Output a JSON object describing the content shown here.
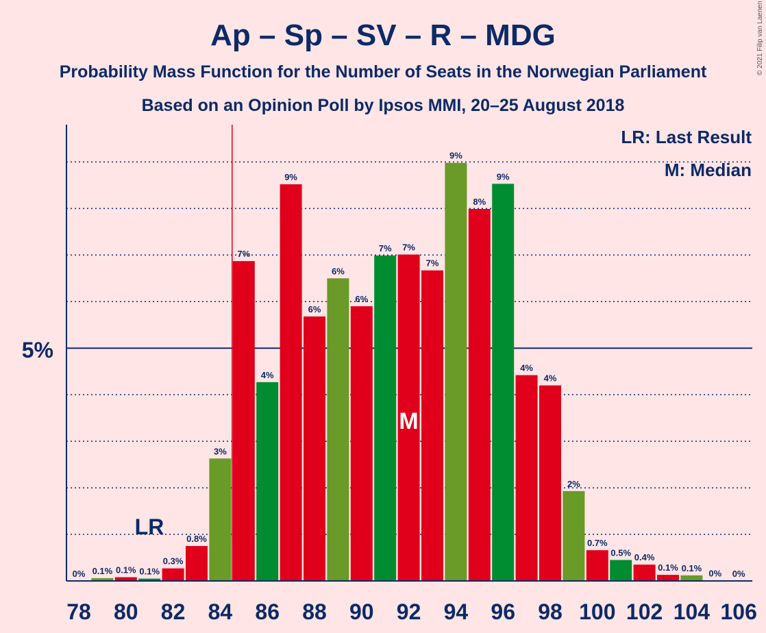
{
  "title": "Ap – Sp – SV – R – MDG",
  "subtitle1": "Probability Mass Function for the Number of Seats in the Norwegian Parliament",
  "subtitle2": "Based on an Opinion Poll by Ipsos MMI, 20–25 August 2018",
  "credit": "© 2021 Filip van Laenen",
  "legend": {
    "lr": "LR: Last Result",
    "m": "M: Median"
  },
  "markers": {
    "lr_label": "LR",
    "median_label": "M",
    "last_result_seat": 85,
    "median_seat": 92
  },
  "colors": {
    "red": "#e0001b",
    "green": "#008c30",
    "olive": "#6a9a28",
    "navy": "#0c2a67",
    "background": "#ffe5e5"
  },
  "chart_data": {
    "type": "bar",
    "ylabel_tick": "5%",
    "ylim": [
      0,
      9.8
    ],
    "x_ticks": [
      "78",
      "80",
      "82",
      "84",
      "86",
      "88",
      "90",
      "92",
      "94",
      "96",
      "98",
      "100",
      "102",
      "104",
      "106"
    ],
    "seats": [
      78,
      79,
      80,
      81,
      82,
      83,
      84,
      85,
      86,
      87,
      88,
      89,
      90,
      91,
      92,
      93,
      94,
      95,
      96,
      97,
      98,
      99,
      100,
      101,
      102,
      103,
      104,
      105,
      106
    ],
    "values": [
      0,
      0.06,
      0.08,
      0.05,
      0.27,
      0.75,
      2.63,
      6.87,
      4.27,
      8.52,
      5.68,
      6.5,
      5.9,
      6.99,
      7.01,
      6.67,
      8.98,
      7.99,
      8.53,
      4.42,
      4.2,
      1.93,
      0.66,
      0.45,
      0.35,
      0.13,
      0.12,
      0.01,
      0
    ],
    "labels": [
      "0%",
      "0.1%",
      "0.1%",
      "0.1%",
      "0.3%",
      "0.8%",
      "3%",
      "7%",
      "4%",
      "9%",
      "6%",
      "6%",
      "6%",
      "7%",
      "7%",
      "7%",
      "9%",
      "8%",
      "9%",
      "4%",
      "4%",
      "2%",
      "0.7%",
      "0.5%",
      "0.4%",
      "0.1%",
      "0.1%",
      "0%",
      "0%"
    ],
    "bar_colors": [
      "red",
      "olive",
      "red",
      "green",
      "red",
      "red",
      "olive",
      "red",
      "green",
      "red",
      "red",
      "olive",
      "red",
      "green",
      "red",
      "red",
      "olive",
      "red",
      "green",
      "red",
      "red",
      "olive",
      "red",
      "green",
      "red",
      "red",
      "olive",
      "red",
      "green"
    ]
  }
}
